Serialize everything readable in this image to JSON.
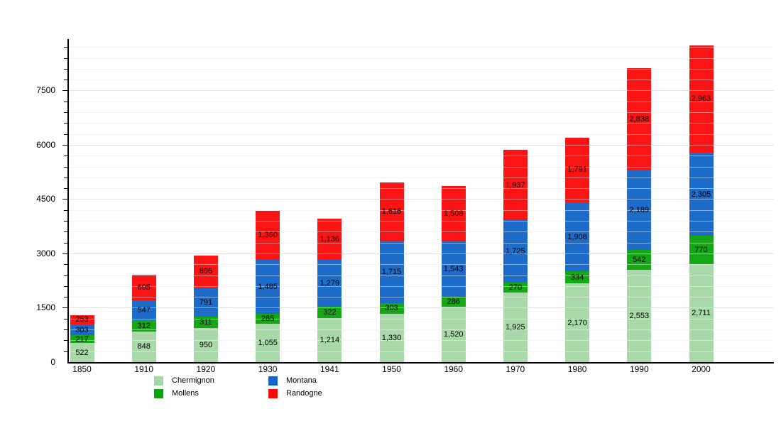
{
  "chart_data": {
    "type": "bar",
    "stacked": true,
    "title": "",
    "xlabel": "",
    "ylabel": "",
    "categories": [
      "1850",
      "1910",
      "1920",
      "1930",
      "1941",
      "1950",
      "1960",
      "1970",
      "1980",
      "1990",
      "2000"
    ],
    "series": [
      {
        "name": "Chermignon",
        "color": "#a5d7a5",
        "values": [
          522,
          848,
          950,
          1055,
          1214,
          1330,
          1520,
          1925,
          2170,
          2553,
          2711
        ]
      },
      {
        "name": "Mollens",
        "color": "#0ba30b",
        "values": [
          217,
          312,
          311,
          285,
          322,
          303,
          286,
          270,
          334,
          542,
          770
        ]
      },
      {
        "name": "Montana",
        "color": "#1566c8",
        "values": [
          303,
          547,
          791,
          1485,
          1279,
          1715,
          1543,
          1725,
          1908,
          2189,
          2305
        ]
      },
      {
        "name": "Randogne",
        "color": "#fb0a0a",
        "values": [
          253,
          695,
          896,
          1360,
          1136,
          1616,
          1508,
          1937,
          1791,
          2838,
          2963
        ]
      }
    ],
    "ylim": [
      0,
      8920
    ],
    "y_major_ticks": [
      0,
      1500,
      3000,
      4500,
      6000,
      7500
    ],
    "y_minor_step": 300,
    "grid": true,
    "legend_position": "bottom",
    "legend_order": [
      "Chermignon",
      "Mollens",
      "Montana",
      "Randogne"
    ]
  },
  "axis": {
    "y_tick_labels": [
      "0",
      "1500",
      "3000",
      "4500",
      "6000",
      "7500"
    ]
  }
}
